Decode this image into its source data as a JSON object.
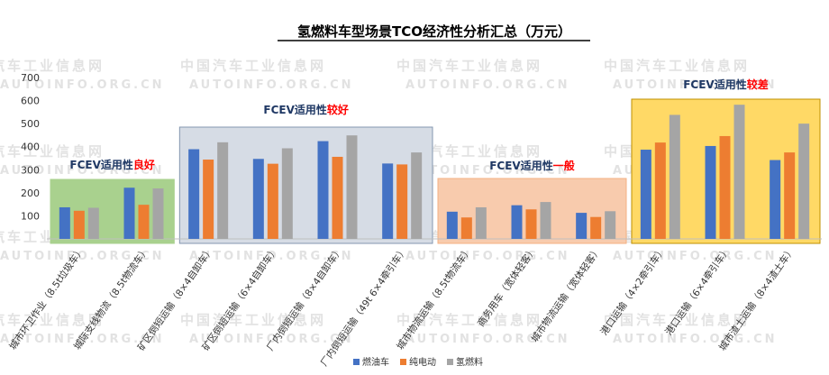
{
  "chart_data": {
    "type": "bar",
    "title": "氢燃料车型场景TCO经济性分析汇总（万元）",
    "xlabel": "",
    "ylabel": "",
    "ylim": [
      0,
      700
    ],
    "yticks": [
      100,
      200,
      300,
      400,
      500,
      600,
      700
    ],
    "grid": false,
    "legend_position": "bottom-center",
    "categories": [
      "城市环卫作业（8.5t垃圾车）",
      "城际支线物流（8.5t物流车）",
      "矿区倒短运输（8×4自卸车）",
      "矿区倒短运输（6×4自卸车）",
      "厂内倒短运输（8×4自卸车）",
      "厂内倒短运输（49t 6×4牵引车）",
      "城市物流运输（8.5t物流车）",
      "商务用车（宽体轻客）",
      "城市物流运输（宽体轻客）",
      "港口运输（4×2牵引车）",
      "港口运输（6×4牵引车）",
      "城市渣土运输（8×4渣土车）"
    ],
    "series": [
      {
        "name": "燃油车",
        "color": "#4472c4",
        "values": [
          137,
          222,
          389,
          347,
          424,
          327,
          118,
          146,
          113,
          387,
          403,
          342
        ]
      },
      {
        "name": "纯电动",
        "color": "#ed7d31",
        "values": [
          122,
          148,
          344,
          326,
          356,
          323,
          93,
          128,
          95,
          418,
          446,
          375
        ]
      },
      {
        "name": "氢燃料",
        "color": "#a5a5a5",
        "values": [
          135,
          219,
          419,
          393,
          449,
          375,
          137,
          160,
          120,
          538,
          582,
          500
        ]
      }
    ],
    "groups": [
      {
        "label_prefix": "FCEV适用性",
        "label_highlight": "良好",
        "fill": "#a9d18e",
        "border": "#a9d18e",
        "from": 0,
        "to": 1
      },
      {
        "label_prefix": "FCEV适用性",
        "label_highlight": "较好",
        "fill": "#d6dce5",
        "border": "#8497b0",
        "from": 2,
        "to": 5
      },
      {
        "label_prefix": "FCEV适用性",
        "label_highlight": "一般",
        "fill": "#f8cbad",
        "border": "#f4b183",
        "from": 6,
        "to": 8
      },
      {
        "label_prefix": "FCEV适用性",
        "label_highlight": "较差",
        "fill": "#ffd966",
        "border": "#bf9000",
        "from": 9,
        "to": 11
      }
    ],
    "highlight_color": "#ff0000"
  },
  "watermark": {
    "lines": [
      "汽车工业信息网",
      "中国汽车工业信息网",
      "AUTOINFO.ORG.CN"
    ]
  }
}
